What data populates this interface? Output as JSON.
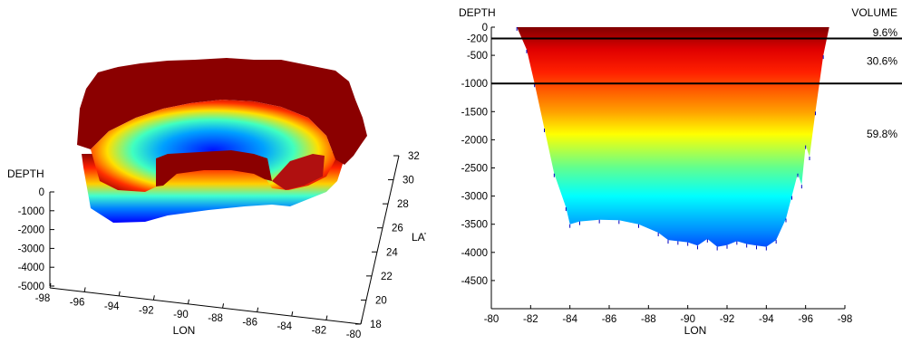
{
  "chart_data": [
    {
      "type": "surface3d",
      "xlabel": "LON",
      "ylabel": "LAT",
      "zlabel": "DEPTH",
      "x_ticks": [
        -98,
        -96,
        -94,
        -92,
        -90,
        -88,
        -86,
        -84,
        -82,
        -80
      ],
      "y_ticks": [
        18,
        20,
        22,
        24,
        26,
        28,
        30,
        32
      ],
      "z_ticks": [
        0,
        -1000,
        -2000,
        -3000,
        -4000,
        -5000
      ],
      "xlim": [
        -98,
        -80
      ],
      "ylim": [
        18,
        32
      ],
      "zlim": [
        -5000,
        0
      ],
      "colormap": [
        "#0000ff",
        "#00ffff",
        "#ffff00",
        "#ff0000",
        "#800000"
      ]
    },
    {
      "type": "area",
      "xlabel": "LON",
      "ylabel": "DEPTH",
      "x_ticks": [
        -80,
        -82,
        -84,
        -86,
        -88,
        -90,
        -92,
        -94,
        -96,
        -98
      ],
      "y_ticks": [
        0,
        -200,
        -500,
        -1000,
        -1500,
        -2000,
        -2500,
        -3000,
        -3500,
        -4000,
        -4500
      ],
      "xlim": [
        -80,
        -98
      ],
      "ylim": [
        -5000,
        0
      ],
      "horizontal_lines": [
        -200,
        -1000
      ],
      "volume_title": "VOLUME",
      "volume_labels": [
        {
          "depth": -100,
          "text": "9.6%"
        },
        {
          "depth": -600,
          "text": "30.6%"
        },
        {
          "depth": -1900,
          "text": "59.8%"
        }
      ],
      "profile": {
        "x": [
          -81.3,
          -81.8,
          -82.2,
          -82.7,
          -83.2,
          -83.8,
          -84.0,
          -84.5,
          -85.5,
          -86.5,
          -87.5,
          -88.5,
          -89.0,
          -89.5,
          -90.0,
          -90.5,
          -91.0,
          -91.5,
          -92.0,
          -92.5,
          -93.0,
          -93.5,
          -94.0,
          -94.5,
          -95.0,
          -95.3,
          -95.6,
          -95.8,
          -96.0,
          -96.2,
          -96.5,
          -96.9,
          -97.2
        ],
        "y": [
          0,
          -400,
          -1000,
          -1800,
          -2600,
          -3200,
          -3500,
          -3450,
          -3420,
          -3430,
          -3500,
          -3650,
          -3780,
          -3800,
          -3820,
          -3880,
          -3760,
          -3900,
          -3870,
          -3800,
          -3850,
          -3880,
          -3900,
          -3780,
          -3400,
          -3000,
          -2600,
          -2800,
          -2100,
          -2300,
          -1500,
          -500,
          0
        ]
      },
      "colormap": [
        "#0000ff",
        "#00ffff",
        "#ffff00",
        "#ff0000",
        "#800000"
      ]
    }
  ]
}
